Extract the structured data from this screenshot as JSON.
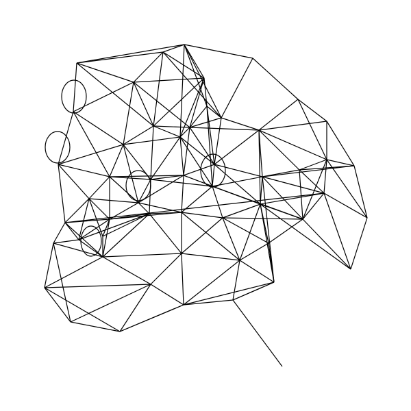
{
  "figure": {
    "type": "wireframe-line-drawing",
    "stroke_color": "#000000",
    "background_color": "#ffffff",
    "loop_count": 5,
    "text_labels": []
  }
}
